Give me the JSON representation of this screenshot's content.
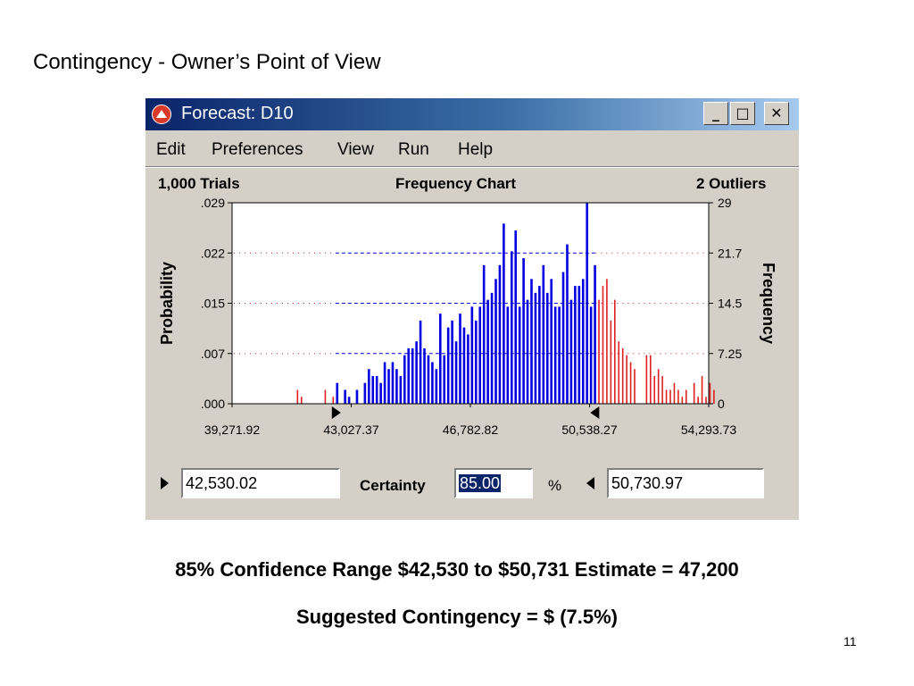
{
  "slide": {
    "title": "Contingency - Owner’s Point of View",
    "line1": "85% Confidence Range $42,530  to $50,731  Estimate = 47,200",
    "line2": "Suggested Contingency =  $   (7.5%)",
    "page_number": "11"
  },
  "window": {
    "title": "Forecast: D10",
    "icon": "crystal-ball-app-icon",
    "controls": {
      "minimize": "_",
      "maximize": "□",
      "close": "✕"
    },
    "menu": [
      "Edit",
      "Preferences",
      "View",
      "Run",
      "Help"
    ]
  },
  "header": {
    "trials": "1,000 Trials",
    "chart_name": "Frequency Chart",
    "outliers": "2 Outliers"
  },
  "controls": {
    "lower_value": "42,530.02",
    "certainty_label": "Certainty",
    "certainty_value": "85.00",
    "percent_sign": "%",
    "upper_value": "50,730.97"
  },
  "colors": {
    "in_range": "#0000e0",
    "out_of_range": "#e02020",
    "plot_bg": "#ffffff",
    "window_bg": "#d4d0c8"
  },
  "chart_data": {
    "type": "bar",
    "title": "Frequency Chart",
    "ylabel": "Probability",
    "y2label": "Frequency",
    "x_ticks": [
      "39,271.92",
      "43,027.37",
      "46,782.82",
      "50,538.27",
      "54,293.73"
    ],
    "xlim": [
      39271.92,
      54293.73
    ],
    "y_ticks": [
      ".000",
      ".007",
      ".015",
      ".022",
      ".029"
    ],
    "ylim": [
      0,
      0.029
    ],
    "y2_ticks": [
      "0",
      "7.25",
      "14.5",
      "21.7",
      "29"
    ],
    "y2lim": [
      0,
      29
    ],
    "certainty_range": [
      42530.02,
      50730.97
    ],
    "bin_width": 125,
    "bin_start": 39271.92,
    "frequencies": [
      0,
      0,
      0,
      0,
      0,
      0,
      0,
      0,
      0,
      0,
      0,
      0,
      0,
      0,
      0,
      0,
      2,
      1,
      0,
      0,
      0,
      0,
      0,
      2,
      0,
      1,
      3,
      0,
      2,
      1,
      0,
      2,
      0,
      3,
      5,
      4,
      4,
      3,
      6,
      5,
      6,
      5,
      4,
      7,
      8,
      8,
      9,
      12,
      8,
      7,
      6,
      5,
      13,
      7,
      11,
      12,
      9,
      13,
      11,
      10,
      14,
      12,
      14,
      20,
      15,
      16,
      18,
      20,
      26,
      14,
      22,
      25,
      14,
      21,
      15,
      18,
      16,
      17,
      20,
      16,
      18,
      14,
      14,
      19,
      23,
      15,
      17,
      17,
      18,
      29,
      14,
      20,
      15,
      17,
      18,
      12,
      15,
      9,
      8,
      7,
      6,
      5,
      0,
      0,
      7,
      7,
      4,
      5,
      4,
      2,
      2,
      3,
      2,
      1,
      2,
      0,
      3,
      1,
      4,
      1,
      3,
      2,
      0,
      0,
      0,
      0,
      0,
      0,
      0,
      0,
      0
    ],
    "grid": "dotted horizontal"
  }
}
